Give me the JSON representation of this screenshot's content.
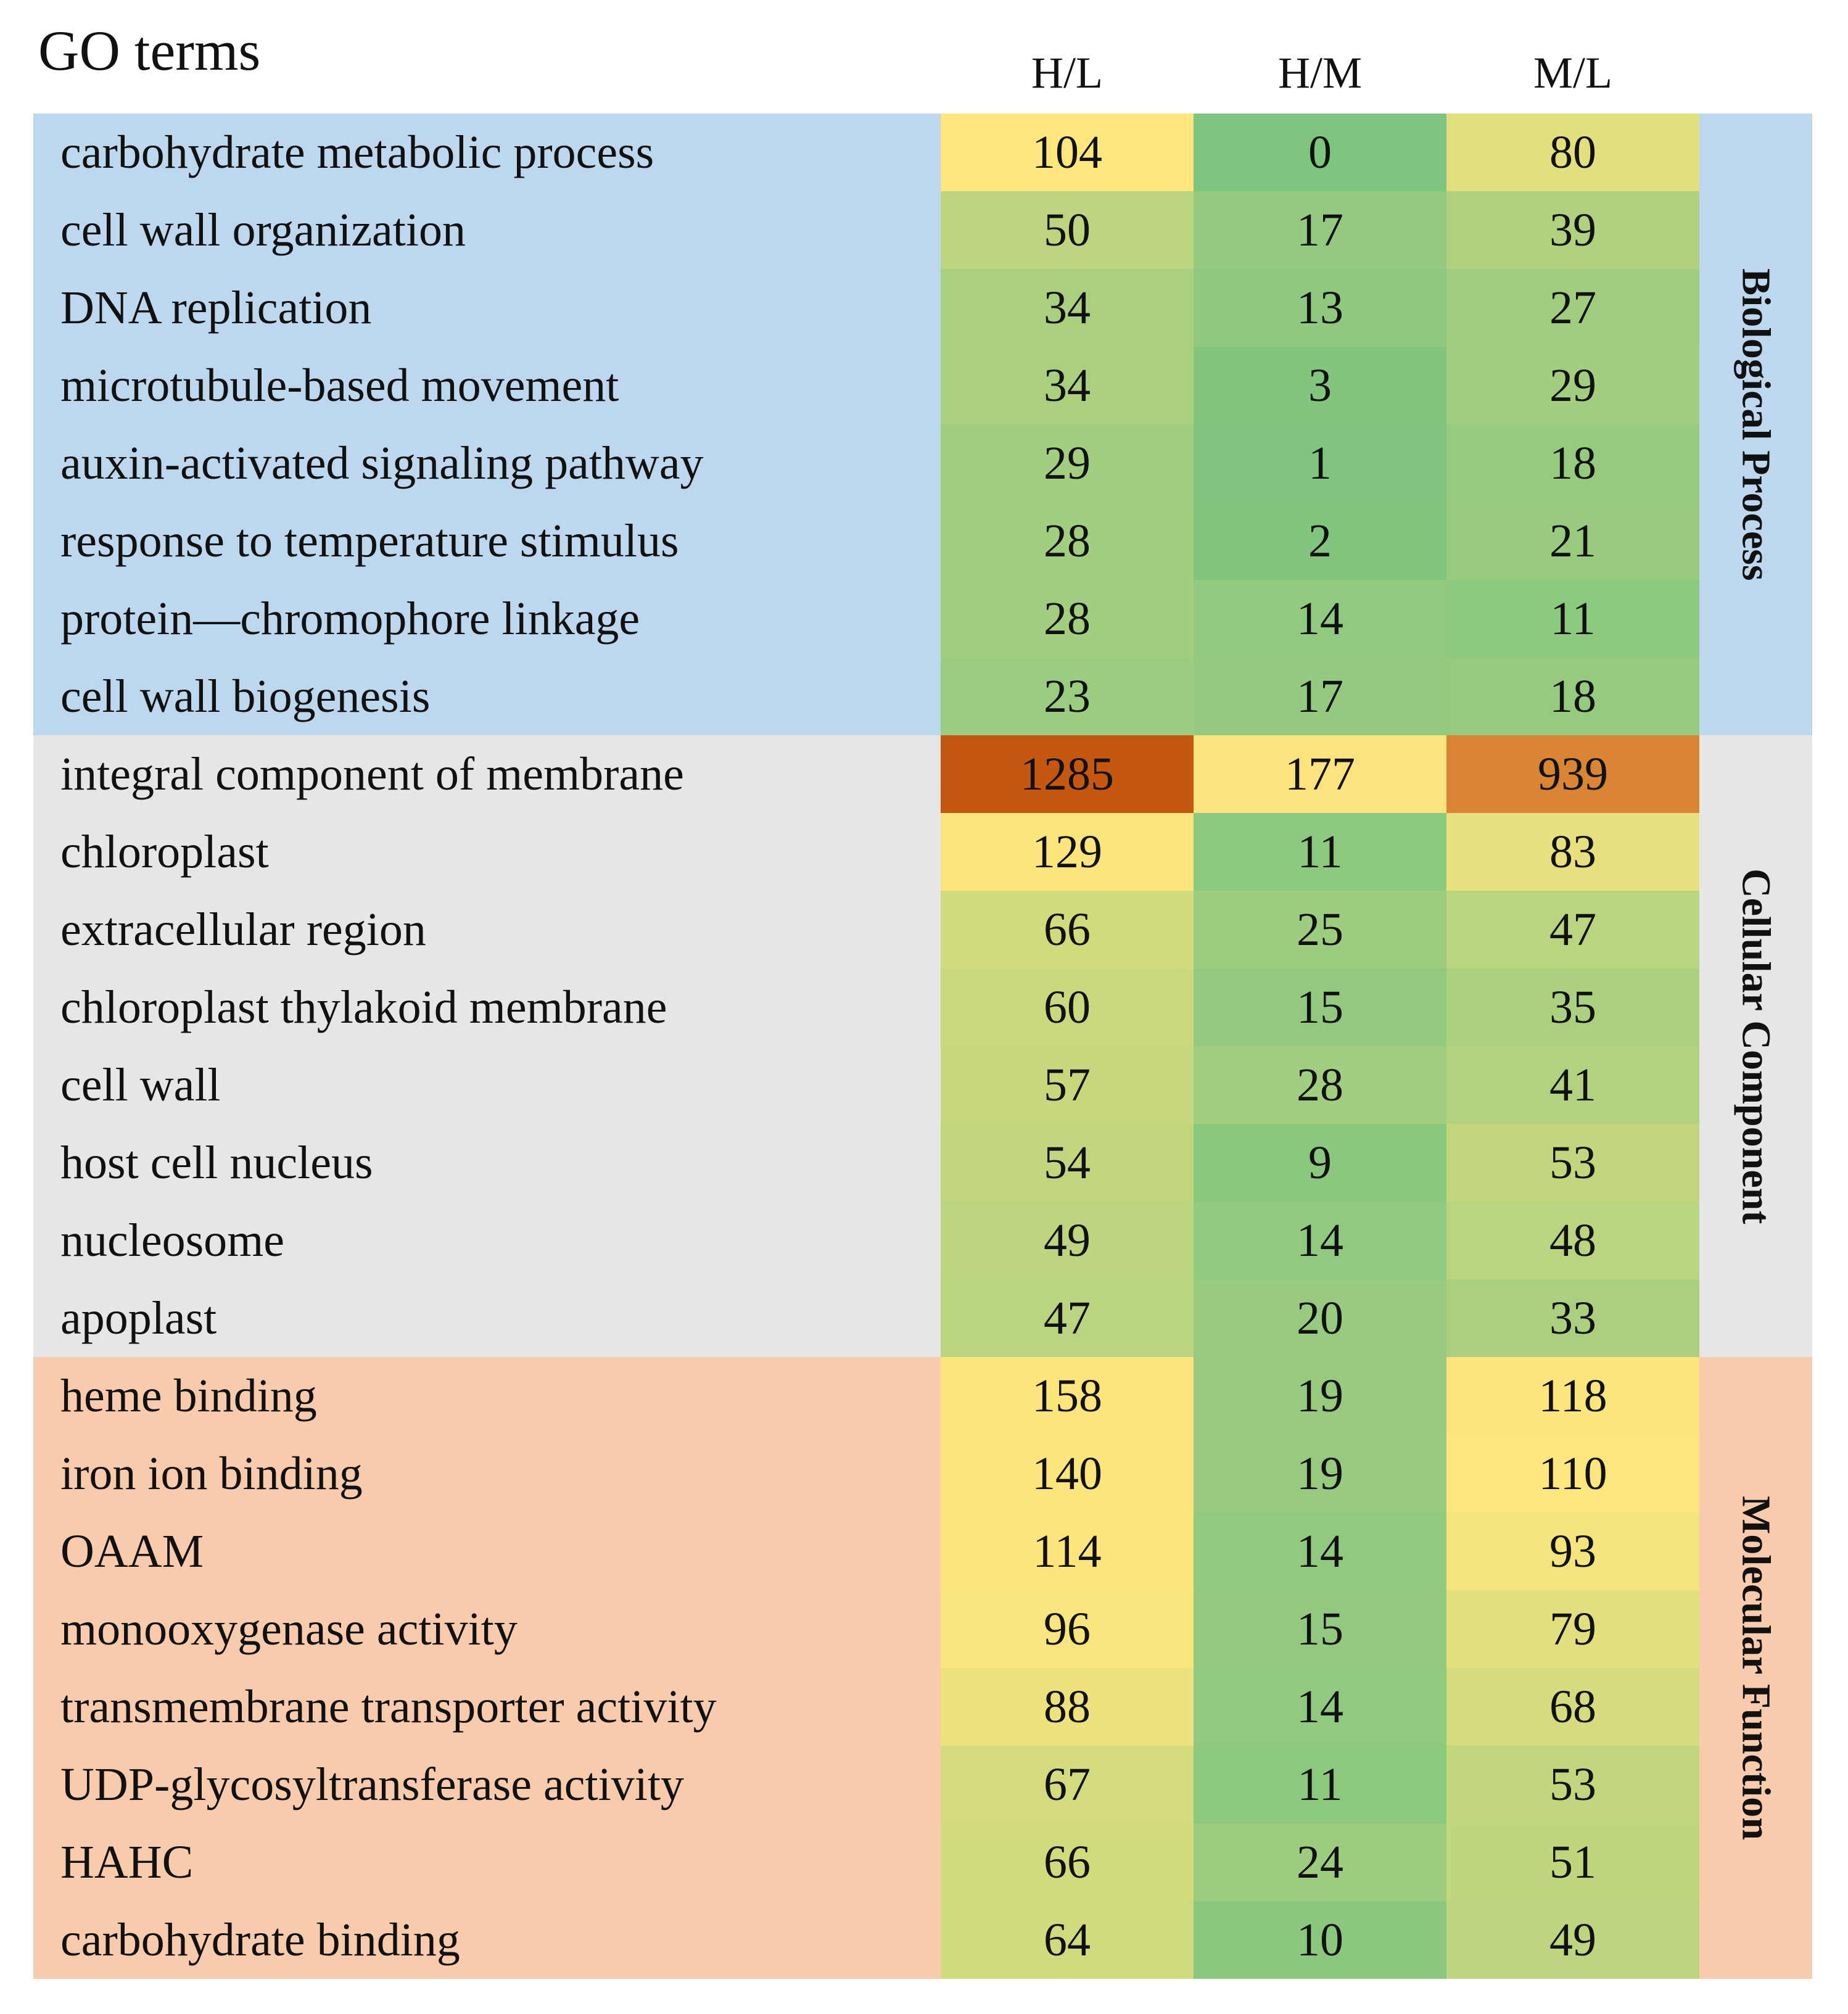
{
  "chart_data": {
    "type": "heatmap",
    "title": "GO terms",
    "columns": [
      "H/L",
      "H/M",
      "M/L"
    ],
    "groups": [
      {
        "name": "Biological Process",
        "color": "#bdd7ee",
        "rows": [
          {
            "term": "carbohydrate metabolic process",
            "values": [
              104,
              0,
              80
            ]
          },
          {
            "term": "cell wall organization",
            "values": [
              50,
              17,
              39
            ]
          },
          {
            "term": "DNA replication",
            "values": [
              34,
              13,
              27
            ]
          },
          {
            "term": "microtubule-based movement",
            "values": [
              34,
              3,
              29
            ]
          },
          {
            "term": "auxin-activated signaling pathway",
            "values": [
              29,
              1,
              18
            ]
          },
          {
            "term": "response to temperature stimulus",
            "values": [
              28,
              2,
              21
            ]
          },
          {
            "term": "protein—chromophore linkage",
            "values": [
              28,
              14,
              11
            ]
          },
          {
            "term": "cell wall biogenesis",
            "values": [
              23,
              17,
              18
            ]
          }
        ]
      },
      {
        "name": "Cellular Component",
        "color": "#e6e6e6",
        "rows": [
          {
            "term": "integral component of membrane",
            "values": [
              1285,
              177,
              939
            ]
          },
          {
            "term": "chloroplast",
            "values": [
              129,
              11,
              83
            ]
          },
          {
            "term": "extracellular region",
            "values": [
              66,
              25,
              47
            ]
          },
          {
            "term": "chloroplast thylakoid membrane",
            "values": [
              60,
              15,
              35
            ]
          },
          {
            "term": "cell wall",
            "values": [
              57,
              28,
              41
            ]
          },
          {
            "term": "host cell nucleus",
            "values": [
              54,
              9,
              53
            ]
          },
          {
            "term": "nucleosome",
            "values": [
              49,
              14,
              48
            ]
          },
          {
            "term": "apoplast",
            "values": [
              47,
              20,
              33
            ]
          }
        ]
      },
      {
        "name": "Molecular Function",
        "color": "#f8cbad",
        "rows": [
          {
            "term": "heme binding",
            "values": [
              158,
              19,
              118
            ]
          },
          {
            "term": "iron ion binding",
            "values": [
              140,
              19,
              110
            ]
          },
          {
            "term": "OAAM",
            "values": [
              114,
              14,
              93
            ]
          },
          {
            "term": "monooxygenase activity",
            "values": [
              96,
              15,
              79
            ]
          },
          {
            "term": "transmembrane transporter activity",
            "values": [
              88,
              14,
              68
            ]
          },
          {
            "term": "UDP-glycosyltransferase activity",
            "values": [
              67,
              11,
              53
            ]
          },
          {
            "term": "HAHC",
            "values": [
              66,
              24,
              51
            ]
          },
          {
            "term": "carbohydrate binding",
            "values": [
              64,
              10,
              49
            ]
          }
        ]
      }
    ],
    "color_scale": {
      "stops": [
        {
          "value": 0,
          "color": "#7fc47f"
        },
        {
          "value": 100,
          "color": "#fde67e"
        },
        {
          "value": 180,
          "color": "#fde37d"
        },
        {
          "value": 940,
          "color": "#d98534"
        },
        {
          "value": 1285,
          "color": "#c45711"
        }
      ]
    }
  }
}
